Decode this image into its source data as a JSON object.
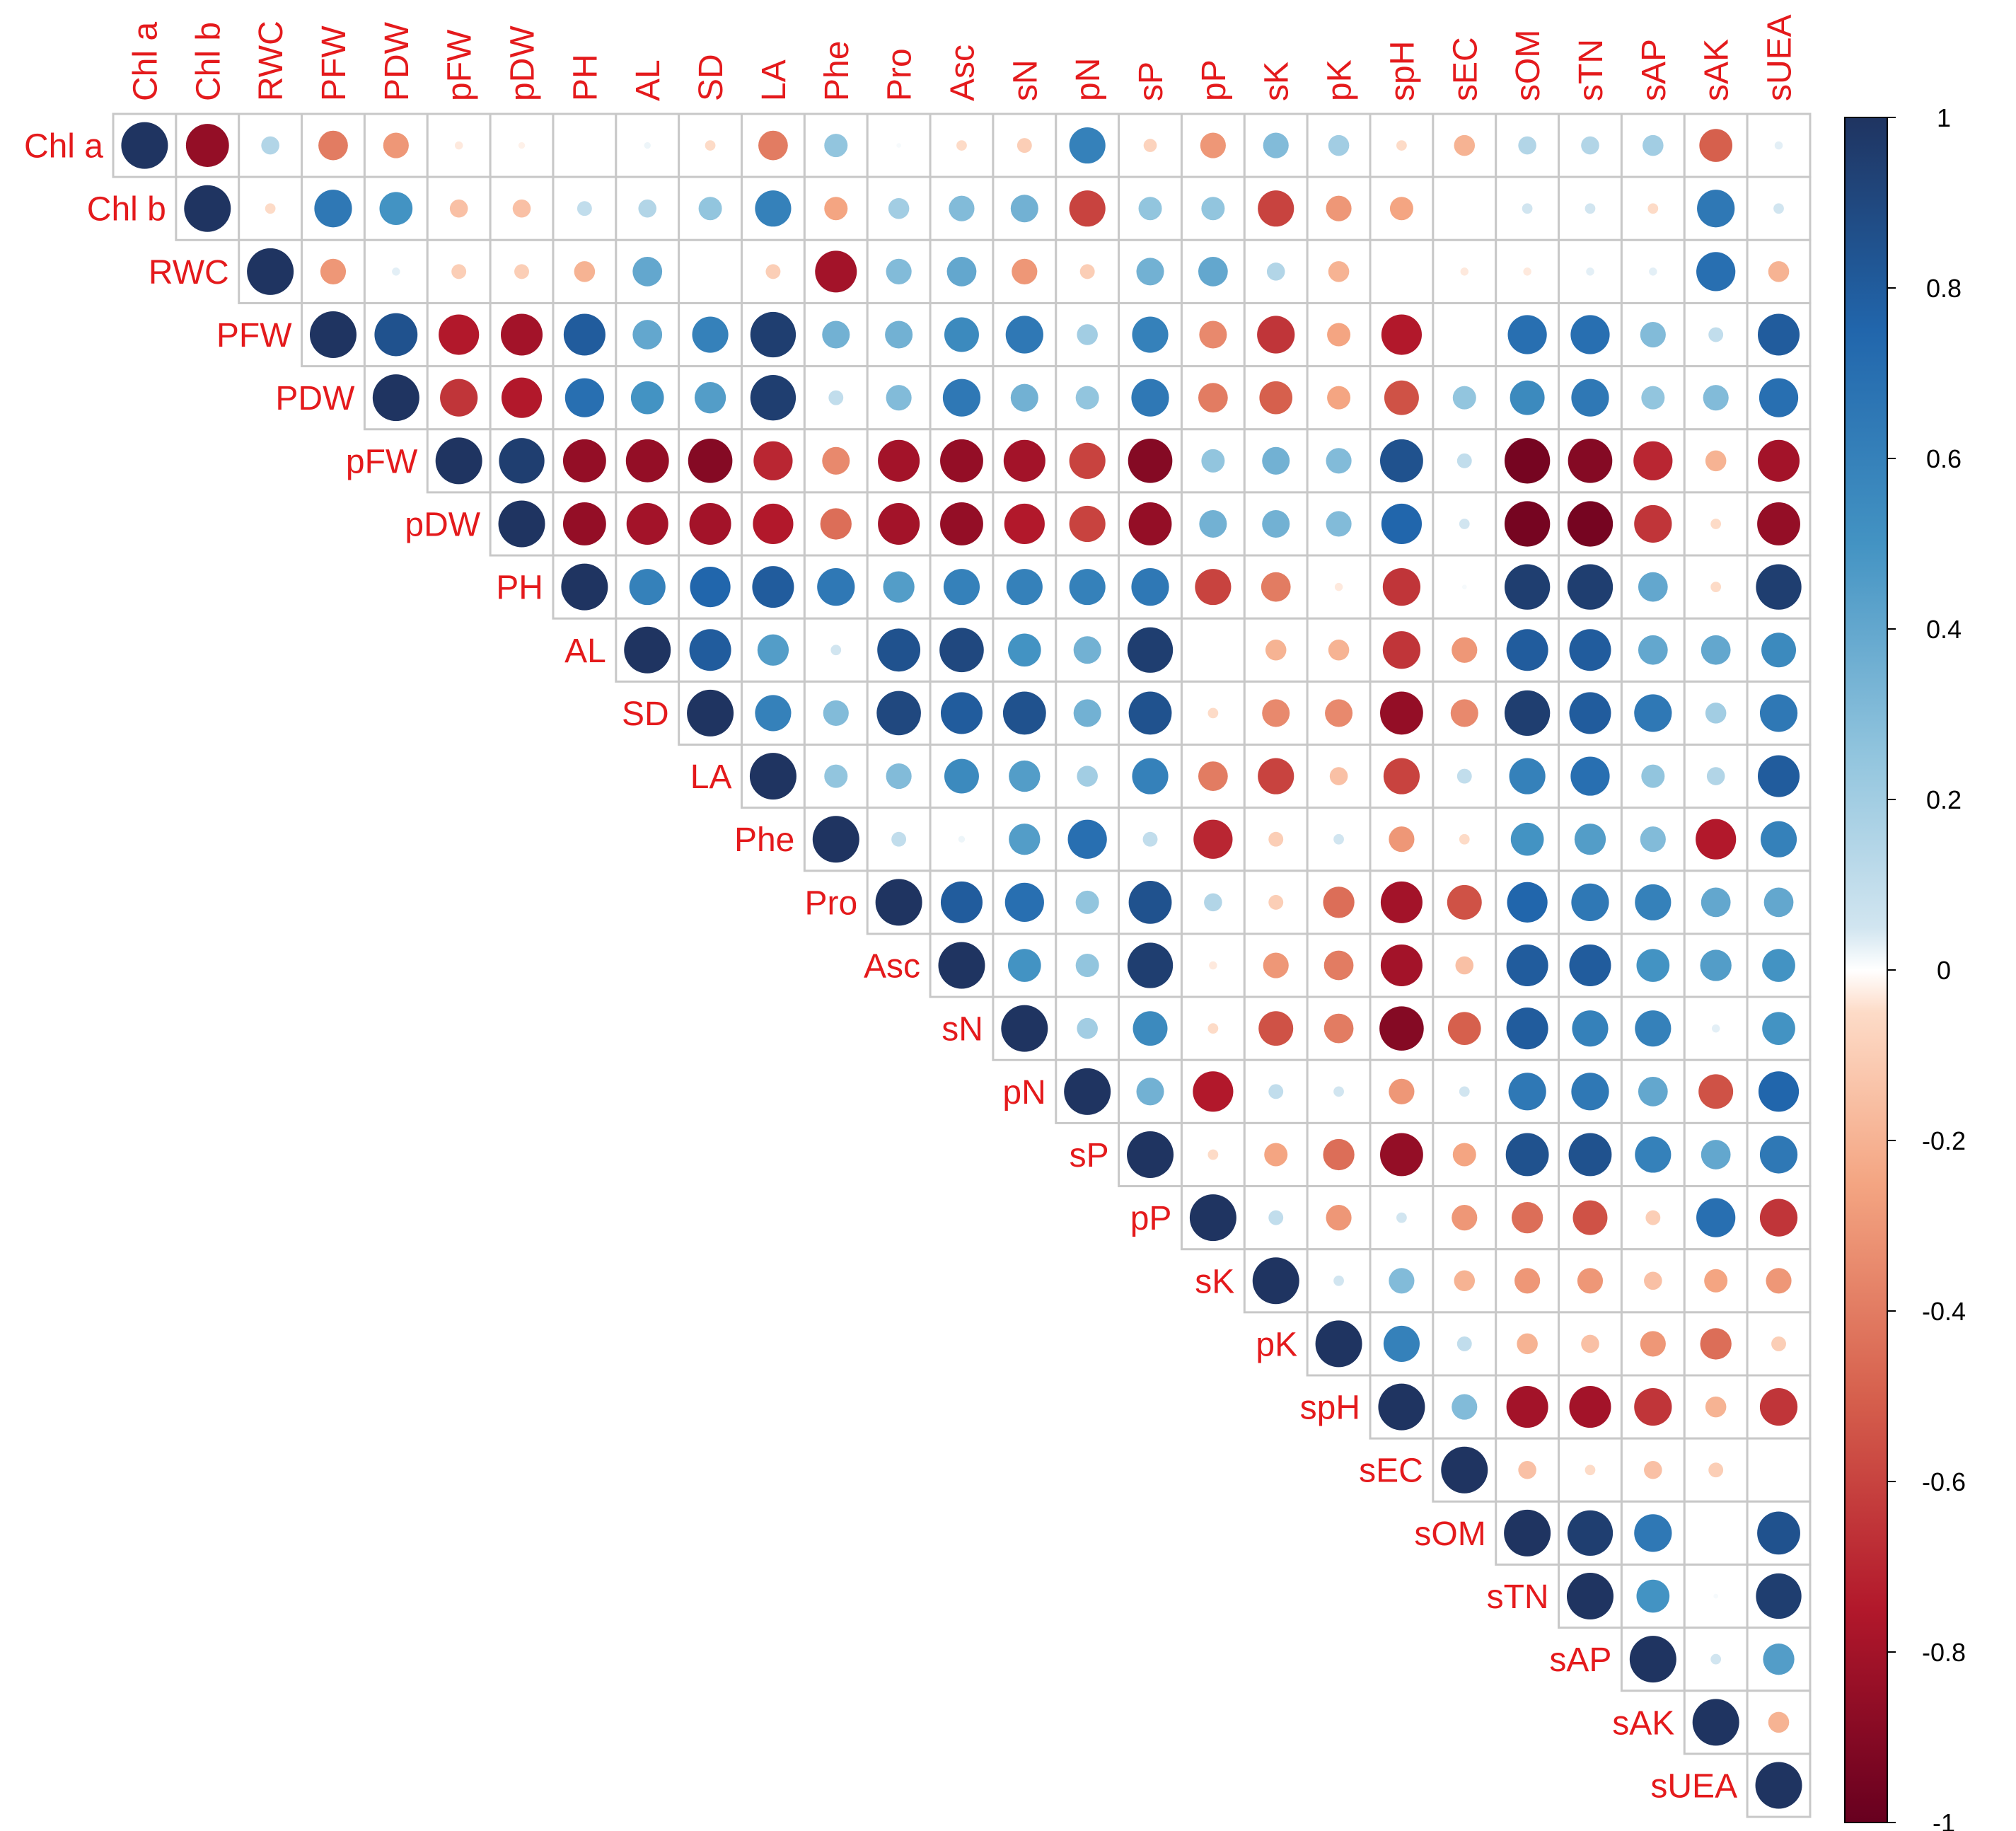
{
  "chart_data": {
    "type": "heatmap",
    "subtype": "correlation-upper-triangle-circles",
    "title": "",
    "variables": [
      "Chl a",
      "Chl b",
      "RWC",
      "PFW",
      "PDW",
      "pFW",
      "pDW",
      "PH",
      "AL",
      "SD",
      "LA",
      "Phe",
      "Pro",
      "Asc",
      "sN",
      "pN",
      "sP",
      "pP",
      "sK",
      "pK",
      "spH",
      "sEC",
      "sOM",
      "sTN",
      "sAP",
      "sAK",
      "sUEA"
    ],
    "matrix": [
      [
        1,
        -0.85,
        0.15,
        -0.4,
        -0.3,
        -0.03,
        -0.02,
        0,
        0.02,
        -0.05,
        -0.4,
        0.25,
        0.01,
        -0.05,
        -0.1,
        0.6,
        -0.08,
        -0.3,
        0.3,
        0.2,
        -0.05,
        -0.2,
        0.15,
        0.15,
        0.2,
        -0.5,
        0.03
      ],
      [
        0,
        1,
        -0.05,
        0.65,
        0.5,
        -0.15,
        -0.15,
        0.1,
        0.15,
        0.25,
        0.6,
        -0.25,
        0.2,
        0.3,
        0.35,
        -0.6,
        0.25,
        0.25,
        -0.6,
        -0.3,
        -0.25,
        0,
        0.05,
        0.05,
        -0.05,
        0.65,
        0.05
      ],
      [
        0,
        0,
        1,
        -0.3,
        0.03,
        -0.1,
        -0.1,
        -0.2,
        0.4,
        0,
        -0.1,
        -0.8,
        0.3,
        0.4,
        -0.3,
        -0.1,
        0.35,
        0.4,
        0.15,
        -0.2,
        0,
        -0.03,
        -0.03,
        0.03,
        0.03,
        0.7,
        -0.2
      ],
      [
        0,
        0,
        0,
        1,
        0.85,
        -0.75,
        -0.8,
        0.8,
        0.4,
        0.6,
        0.95,
        0.35,
        0.35,
        0.55,
        0.65,
        0.2,
        0.6,
        -0.35,
        -0.65,
        -0.25,
        -0.75,
        0,
        0.7,
        0.7,
        0.3,
        0.1,
        0.8
      ],
      [
        0,
        0,
        0,
        0,
        1,
        -0.65,
        -0.75,
        0.7,
        0.5,
        0.45,
        0.95,
        0.1,
        0.3,
        0.65,
        0.35,
        0.25,
        0.65,
        -0.4,
        -0.5,
        -0.25,
        -0.55,
        0.25,
        0.55,
        0.65,
        0.25,
        0.3,
        0.7
      ],
      [
        0,
        0,
        0,
        0,
        0,
        1,
        0.95,
        -0.85,
        -0.85,
        -0.9,
        -0.7,
        -0.35,
        -0.8,
        -0.85,
        -0.8,
        -0.6,
        -0.9,
        0.25,
        0.35,
        0.3,
        0.85,
        0.1,
        -0.95,
        -0.9,
        -0.7,
        -0.2,
        -0.8
      ],
      [
        0,
        0,
        0,
        0,
        0,
        0,
        1,
        -0.85,
        -0.8,
        -0.8,
        -0.75,
        -0.45,
        -0.8,
        -0.85,
        -0.75,
        -0.6,
        -0.85,
        0.35,
        0.35,
        0.3,
        0.75,
        0.05,
        -0.95,
        -0.95,
        -0.65,
        -0.05,
        -0.85
      ],
      [
        0,
        0,
        0,
        0,
        0,
        0,
        0,
        1,
        0.6,
        0.75,
        0.8,
        0.65,
        0.45,
        0.6,
        0.6,
        0.6,
        0.65,
        -0.6,
        -0.4,
        -0.03,
        -0.65,
        0.01,
        0.95,
        0.95,
        0.4,
        -0.05,
        0.95
      ],
      [
        0,
        0,
        0,
        0,
        0,
        0,
        0,
        0,
        1,
        0.8,
        0.45,
        0.05,
        0.85,
        0.9,
        0.5,
        0.35,
        0.95,
        0,
        -0.2,
        -0.2,
        -0.65,
        -0.3,
        0.8,
        0.8,
        0.4,
        0.4,
        0.55
      ],
      [
        0,
        0,
        0,
        0,
        0,
        0,
        0,
        0,
        0,
        1,
        0.6,
        0.3,
        0.9,
        0.8,
        0.85,
        0.35,
        0.85,
        -0.05,
        -0.35,
        -0.35,
        -0.85,
        -0.35,
        0.95,
        0.8,
        0.65,
        0.2,
        0.65
      ],
      [
        0,
        0,
        0,
        0,
        0,
        0,
        0,
        0,
        0,
        0,
        1,
        0.25,
        0.3,
        0.55,
        0.45,
        0.2,
        0.6,
        -0.4,
        -0.6,
        -0.15,
        -0.6,
        0.1,
        0.6,
        0.7,
        0.25,
        0.15,
        0.8
      ],
      [
        0,
        0,
        0,
        0,
        0,
        0,
        0,
        0,
        0,
        0,
        0,
        1,
        0.1,
        0.02,
        0.45,
        0.7,
        0.1,
        -0.7,
        -0.1,
        0.05,
        -0.3,
        -0.05,
        0.5,
        0.45,
        0.3,
        -0.75,
        0.6
      ],
      [
        0,
        0,
        0,
        0,
        0,
        0,
        0,
        0,
        0,
        0,
        0,
        0,
        1,
        0.8,
        0.7,
        0.25,
        0.85,
        0.15,
        -0.1,
        -0.45,
        -0.8,
        -0.55,
        0.75,
        0.65,
        0.6,
        0.4,
        0.4
      ],
      [
        0,
        0,
        0,
        0,
        0,
        0,
        0,
        0,
        0,
        0,
        0,
        0,
        0,
        1,
        0.5,
        0.25,
        0.95,
        -0.03,
        -0.3,
        -0.4,
        -0.8,
        -0.15,
        0.8,
        0.8,
        0.5,
        0.45,
        0.5
      ],
      [
        0,
        0,
        0,
        0,
        0,
        0,
        0,
        0,
        0,
        0,
        0,
        0,
        0,
        0,
        1,
        0.2,
        0.55,
        -0.05,
        -0.55,
        -0.4,
        -0.9,
        -0.5,
        0.8,
        0.6,
        0.6,
        0.03,
        0.5
      ],
      [
        0,
        0,
        0,
        0,
        0,
        0,
        0,
        0,
        0,
        0,
        0,
        0,
        0,
        0,
        0,
        1,
        0.35,
        -0.75,
        0.1,
        0.05,
        -0.3,
        0.05,
        0.65,
        0.65,
        0.4,
        -0.55,
        0.75
      ],
      [
        0,
        0,
        0,
        0,
        0,
        0,
        0,
        0,
        0,
        0,
        0,
        0,
        0,
        0,
        0,
        0,
        1,
        -0.05,
        -0.25,
        -0.45,
        -0.85,
        -0.25,
        0.85,
        0.85,
        0.6,
        0.4,
        0.65
      ],
      [
        0,
        0,
        0,
        0,
        0,
        0,
        0,
        0,
        0,
        0,
        0,
        0,
        0,
        0,
        0,
        0,
        0,
        1,
        0.1,
        -0.3,
        0.05,
        -0.3,
        -0.45,
        -0.55,
        -0.1,
        0.7,
        -0.65
      ],
      [
        0,
        0,
        0,
        0,
        0,
        0,
        0,
        0,
        0,
        0,
        0,
        0,
        0,
        0,
        0,
        0,
        0,
        0,
        1,
        0.05,
        0.3,
        -0.2,
        -0.3,
        -0.3,
        -0.15,
        -0.25,
        -0.3
      ],
      [
        0,
        0,
        0,
        0,
        0,
        0,
        0,
        0,
        0,
        0,
        0,
        0,
        0,
        0,
        0,
        0,
        0,
        0,
        0,
        1,
        0.6,
        0.1,
        -0.2,
        -0.15,
        -0.3,
        -0.45,
        -0.1
      ],
      [
        0,
        0,
        0,
        0,
        0,
        0,
        0,
        0,
        0,
        0,
        0,
        0,
        0,
        0,
        0,
        0,
        0,
        0,
        0,
        0,
        1,
        0.3,
        -0.8,
        -0.8,
        -0.65,
        -0.2,
        -0.65
      ],
      [
        0,
        0,
        0,
        0,
        0,
        0,
        0,
        0,
        0,
        0,
        0,
        0,
        0,
        0,
        0,
        0,
        0,
        0,
        0,
        0,
        0,
        1,
        -0.15,
        -0.05,
        -0.15,
        -0.1,
        0
      ],
      [
        0,
        0,
        0,
        0,
        0,
        0,
        0,
        0,
        0,
        0,
        0,
        0,
        0,
        0,
        0,
        0,
        0,
        0,
        0,
        0,
        0,
        0,
        1,
        0.95,
        0.65,
        0,
        0.85
      ],
      [
        0,
        0,
        0,
        0,
        0,
        0,
        0,
        0,
        0,
        0,
        0,
        0,
        0,
        0,
        0,
        0,
        0,
        0,
        0,
        0,
        0,
        0,
        0,
        1,
        0.5,
        0.01,
        0.95
      ],
      [
        0,
        0,
        0,
        0,
        0,
        0,
        0,
        0,
        0,
        0,
        0,
        0,
        0,
        0,
        0,
        0,
        0,
        0,
        0,
        0,
        0,
        0,
        0,
        0,
        1,
        0.05,
        0.45
      ],
      [
        0,
        0,
        0,
        0,
        0,
        0,
        0,
        0,
        0,
        0,
        0,
        0,
        0,
        0,
        0,
        0,
        0,
        0,
        0,
        0,
        0,
        0,
        0,
        0,
        0,
        1,
        -0.2
      ],
      [
        0,
        0,
        0,
        0,
        0,
        0,
        0,
        0,
        0,
        0,
        0,
        0,
        0,
        0,
        0,
        0,
        0,
        0,
        0,
        0,
        0,
        0,
        0,
        0,
        0,
        0,
        1
      ]
    ],
    "colorbar": {
      "range": [
        -1,
        1
      ],
      "ticks": [
        "1",
        "0.8",
        "0.6",
        "0.4",
        "0.2",
        "0",
        "-0.2",
        "-0.4",
        "-0.6",
        "-0.8",
        "-1"
      ],
      "tick_values": [
        1,
        0.8,
        0.6,
        0.4,
        0.2,
        0,
        -0.2,
        -0.4,
        -0.6,
        -0.8,
        -1
      ],
      "stops": [
        {
          "value": -1,
          "color": "#67001f"
        },
        {
          "value": -0.75,
          "color": "#b2182b"
        },
        {
          "value": -0.5,
          "color": "#d6604d"
        },
        {
          "value": -0.25,
          "color": "#f4a582"
        },
        {
          "value": -0.05,
          "color": "#fddbc7"
        },
        {
          "value": 0,
          "color": "#ffffff"
        },
        {
          "value": 0.05,
          "color": "#d1e5f0"
        },
        {
          "value": 0.25,
          "color": "#92c5de"
        },
        {
          "value": 0.5,
          "color": "#4393c3"
        },
        {
          "value": 0.75,
          "color": "#2166ac"
        },
        {
          "value": 1,
          "color": "#1f3461"
        }
      ]
    },
    "label_color": "#e41a1c",
    "grid_color": "#c8c8c8"
  }
}
